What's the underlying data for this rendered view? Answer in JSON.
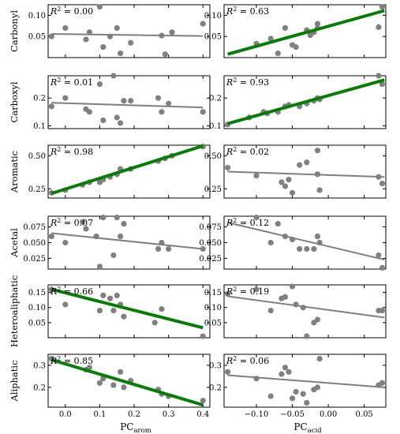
{
  "figure": {
    "xlabels": [
      {
        "base": "PC",
        "sub": "arom"
      },
      {
        "base": "PC",
        "sub": "acid"
      }
    ],
    "fit_colors": {
      "significant": "#0b7a0b",
      "not_significant": "#7f7f7f"
    },
    "point_color": "#808080"
  },
  "chart_data": [
    {
      "type": "scatter",
      "row": 0,
      "col": 0,
      "ylabel": "Carbonyl",
      "r2": "0.00",
      "xlim": [
        -0.05,
        0.42
      ],
      "ylim": [
        0.0,
        0.125
      ],
      "yticks": [
        {
          "v": 0.05,
          "label": "0.05"
        },
        {
          "v": 0.1,
          "label": "0.10"
        }
      ],
      "xticks": [],
      "points": [
        [
          -0.04,
          0.05
        ],
        [
          0.0,
          0.07
        ],
        [
          0.06,
          0.043
        ],
        [
          0.07,
          0.06
        ],
        [
          0.1,
          0.12
        ],
        [
          0.11,
          0.025
        ],
        [
          0.13,
          0.05
        ],
        [
          0.15,
          0.07
        ],
        [
          0.16,
          0.01
        ],
        [
          0.19,
          0.035
        ],
        [
          0.28,
          0.052
        ],
        [
          0.29,
          0.008
        ],
        [
          0.31,
          0.06
        ],
        [
          0.4,
          0.08
        ]
      ],
      "fit": [
        [
          -0.04,
          0.056
        ],
        [
          0.4,
          0.051
        ]
      ],
      "highlight": false
    },
    {
      "type": "scatter",
      "row": 0,
      "col": 1,
      "ylabel": "Carbonyl",
      "r2": "0.63",
      "xlim": [
        -0.145,
        0.08
      ],
      "ylim": [
        0.0,
        0.125
      ],
      "yticks": [
        {
          "v": 0.05,
          "label": "0.05"
        },
        {
          "v": 0.1,
          "label": "0.10"
        }
      ],
      "xticks": [],
      "points": [
        [
          -0.1,
          0.033
        ],
        [
          -0.08,
          0.045
        ],
        [
          -0.07,
          0.01
        ],
        [
          -0.06,
          0.07
        ],
        [
          -0.05,
          0.03
        ],
        [
          -0.045,
          0.025
        ],
        [
          -0.03,
          0.065
        ],
        [
          -0.025,
          0.053
        ],
        [
          -0.02,
          0.06
        ],
        [
          -0.015,
          0.07
        ],
        [
          -0.015,
          0.08
        ],
        [
          0.07,
          0.072
        ],
        [
          0.075,
          0.12
        ]
      ],
      "fit": [
        [
          -0.14,
          0.008
        ],
        [
          0.078,
          0.111
        ]
      ],
      "highlight": true
    },
    {
      "type": "scatter",
      "row": 1,
      "col": 0,
      "ylabel": "Carboxyl",
      "r2": "0.01",
      "xlim": [
        -0.05,
        0.42
      ],
      "ylim": [
        0.09,
        0.28
      ],
      "yticks": [
        {
          "v": 0.1,
          "label": "0.1"
        },
        {
          "v": 0.2,
          "label": "0.2"
        }
      ],
      "xticks": [],
      "points": [
        [
          -0.04,
          0.17
        ],
        [
          0.0,
          0.2
        ],
        [
          0.06,
          0.16
        ],
        [
          0.07,
          0.15
        ],
        [
          0.1,
          0.25
        ],
        [
          0.11,
          0.12
        ],
        [
          0.14,
          0.28
        ],
        [
          0.15,
          0.13
        ],
        [
          0.16,
          0.11
        ],
        [
          0.17,
          0.19
        ],
        [
          0.19,
          0.19
        ],
        [
          0.27,
          0.2
        ],
        [
          0.28,
          0.15
        ],
        [
          0.3,
          0.18
        ],
        [
          0.4,
          0.15
        ]
      ],
      "fit": [
        [
          -0.04,
          0.183
        ],
        [
          0.4,
          0.166
        ]
      ],
      "highlight": false
    },
    {
      "type": "scatter",
      "row": 1,
      "col": 1,
      "ylabel": "Carboxyl",
      "r2": "0.93",
      "xlim": [
        -0.145,
        0.08
      ],
      "ylim": [
        0.09,
        0.28
      ],
      "yticks": [
        {
          "v": 0.1,
          "label": "0.1"
        },
        {
          "v": 0.2,
          "label": "0.2"
        }
      ],
      "xticks": [],
      "points": [
        [
          -0.14,
          0.105
        ],
        [
          -0.11,
          0.13
        ],
        [
          -0.09,
          0.15
        ],
        [
          -0.085,
          0.145
        ],
        [
          -0.07,
          0.15
        ],
        [
          -0.06,
          0.17
        ],
        [
          -0.055,
          0.175
        ],
        [
          -0.04,
          0.17
        ],
        [
          -0.03,
          0.18
        ],
        [
          -0.02,
          0.19
        ],
        [
          -0.015,
          0.2
        ],
        [
          -0.012,
          0.195
        ],
        [
          0.07,
          0.28
        ],
        [
          0.075,
          0.25
        ]
      ],
      "fit": [
        [
          -0.14,
          0.108
        ],
        [
          0.078,
          0.265
        ]
      ],
      "highlight": true
    },
    {
      "type": "scatter",
      "row": 2,
      "col": 0,
      "ylabel": "Aromatic",
      "r2": "0.98",
      "xlim": [
        -0.05,
        0.42
      ],
      "ylim": [
        0.18,
        0.58
      ],
      "yticks": [
        {
          "v": 0.25,
          "label": "0.25"
        },
        {
          "v": 0.5,
          "label": "0.50"
        }
      ],
      "xticks": [],
      "points": [
        [
          -0.04,
          0.22
        ],
        [
          0.0,
          0.24
        ],
        [
          0.05,
          0.28
        ],
        [
          0.07,
          0.3
        ],
        [
          0.1,
          0.3
        ],
        [
          0.11,
          0.32
        ],
        [
          0.13,
          0.34
        ],
        [
          0.15,
          0.36
        ],
        [
          0.16,
          0.4
        ],
        [
          0.19,
          0.4
        ],
        [
          0.27,
          0.46
        ],
        [
          0.29,
          0.48
        ],
        [
          0.31,
          0.5
        ],
        [
          0.4,
          0.57
        ]
      ],
      "fit": [
        [
          -0.04,
          0.215
        ],
        [
          0.4,
          0.575
        ]
      ],
      "highlight": true
    },
    {
      "type": "scatter",
      "row": 2,
      "col": 1,
      "ylabel": "Aromatic",
      "r2": "0.02",
      "xlim": [
        -0.145,
        0.08
      ],
      "ylim": [
        0.18,
        0.58
      ],
      "yticks": [
        {
          "v": 0.25,
          "label": "0.25"
        },
        {
          "v": 0.5,
          "label": "0.50"
        }
      ],
      "xticks": [],
      "points": [
        [
          -0.14,
          0.41
        ],
        [
          -0.1,
          0.35
        ],
        [
          -0.065,
          0.3
        ],
        [
          -0.06,
          0.27
        ],
        [
          -0.055,
          0.32
        ],
        [
          -0.05,
          0.22
        ],
        [
          -0.04,
          0.43
        ],
        [
          -0.03,
          0.45
        ],
        [
          -0.015,
          0.36
        ],
        [
          -0.012,
          0.24
        ],
        [
          -0.015,
          0.54
        ],
        [
          0.07,
          0.34
        ],
        [
          0.075,
          0.29
        ]
      ],
      "fit": [
        [
          -0.14,
          0.38
        ],
        [
          0.078,
          0.34
        ]
      ],
      "highlight": false
    },
    {
      "type": "scatter",
      "row": 3,
      "col": 0,
      "ylabel": "Acetal",
      "r2": "0.07",
      "xlim": [
        -0.05,
        0.42
      ],
      "ylim": [
        0.008,
        0.092
      ],
      "yticks": [
        {
          "v": 0.025,
          "label": "0.025"
        },
        {
          "v": 0.05,
          "label": "0.050"
        },
        {
          "v": 0.075,
          "label": "0.075"
        }
      ],
      "xticks": [],
      "points": [
        [
          -0.04,
          0.06
        ],
        [
          0.0,
          0.05
        ],
        [
          0.05,
          0.083
        ],
        [
          0.06,
          0.072
        ],
        [
          0.09,
          0.06
        ],
        [
          0.1,
          0.012
        ],
        [
          0.11,
          0.09
        ],
        [
          0.14,
          0.03
        ],
        [
          0.15,
          0.09
        ],
        [
          0.16,
          0.06
        ],
        [
          0.17,
          0.08
        ],
        [
          0.27,
          0.04
        ],
        [
          0.28,
          0.05
        ],
        [
          0.3,
          0.04
        ],
        [
          0.4,
          0.04
        ]
      ],
      "fit": [
        [
          -0.04,
          0.065
        ],
        [
          0.4,
          0.04
        ]
      ],
      "highlight": false
    },
    {
      "type": "scatter",
      "row": 3,
      "col": 1,
      "ylabel": "Acetal",
      "r2": "0.12",
      "xlim": [
        -0.145,
        0.08
      ],
      "ylim": [
        0.008,
        0.092
      ],
      "yticks": [
        {
          "v": 0.025,
          "label": "0.025"
        },
        {
          "v": 0.05,
          "label": "0.050"
        },
        {
          "v": 0.075,
          "label": "0.075"
        }
      ],
      "xticks": [],
      "points": [
        [
          -0.1,
          0.09
        ],
        [
          -0.08,
          0.05
        ],
        [
          -0.07,
          0.08
        ],
        [
          -0.06,
          0.06
        ],
        [
          -0.05,
          0.055
        ],
        [
          -0.04,
          0.04
        ],
        [
          -0.03,
          0.04
        ],
        [
          -0.02,
          0.04
        ],
        [
          -0.015,
          0.06
        ],
        [
          -0.012,
          0.05
        ],
        [
          0.07,
          0.03
        ],
        [
          0.075,
          0.01
        ]
      ],
      "fit": [
        [
          -0.14,
          0.082
        ],
        [
          0.078,
          0.023
        ]
      ],
      "highlight": false
    },
    {
      "type": "scatter",
      "row": 4,
      "col": 0,
      "ylabel": "Heteroaliphatic",
      "r2": "0.66",
      "xlim": [
        -0.05,
        0.42
      ],
      "ylim": [
        0.0,
        0.175
      ],
      "yticks": [
        {
          "v": 0.05,
          "label": "0.05"
        },
        {
          "v": 0.1,
          "label": "0.10"
        },
        {
          "v": 0.15,
          "label": "0.15"
        }
      ],
      "xticks": [],
      "points": [
        [
          -0.04,
          0.16
        ],
        [
          0.0,
          0.11
        ],
        [
          0.1,
          0.09
        ],
        [
          0.11,
          0.14
        ],
        [
          0.13,
          0.13
        ],
        [
          0.14,
          0.09
        ],
        [
          0.15,
          0.14
        ],
        [
          0.16,
          0.11
        ],
        [
          0.17,
          0.07
        ],
        [
          0.26,
          0.05
        ],
        [
          0.28,
          0.095
        ],
        [
          0.4,
          0.005
        ]
      ],
      "fit": [
        [
          -0.04,
          0.16
        ],
        [
          0.4,
          0.033
        ]
      ],
      "highlight": true
    },
    {
      "type": "scatter",
      "row": 4,
      "col": 1,
      "ylabel": "Heteroaliphatic",
      "r2": "0.19",
      "xlim": [
        -0.145,
        0.08
      ],
      "ylim": [
        0.0,
        0.175
      ],
      "yticks": [
        {
          "v": 0.05,
          "label": "0.05"
        },
        {
          "v": 0.1,
          "label": "0.10"
        },
        {
          "v": 0.15,
          "label": "0.15"
        }
      ],
      "xticks": [],
      "points": [
        [
          -0.14,
          0.145
        ],
        [
          -0.1,
          0.16
        ],
        [
          -0.08,
          0.09
        ],
        [
          -0.065,
          0.13
        ],
        [
          -0.06,
          0.135
        ],
        [
          -0.05,
          0.17
        ],
        [
          -0.045,
          0.11
        ],
        [
          -0.035,
          0.1
        ],
        [
          -0.03,
          0.005
        ],
        [
          -0.02,
          0.05
        ],
        [
          -0.015,
          0.06
        ],
        [
          0.07,
          0.09
        ],
        [
          0.075,
          0.09
        ]
      ],
      "fit": [
        [
          -0.14,
          0.137
        ],
        [
          0.078,
          0.067
        ]
      ],
      "highlight": false
    },
    {
      "type": "scatter",
      "row": 5,
      "col": 0,
      "ylabel": "Aliphatic",
      "r2": "0.85",
      "xlim": [
        -0.05,
        0.42
      ],
      "ylim": [
        0.11,
        0.35
      ],
      "yticks": [
        {
          "v": 0.2,
          "label": "0.2"
        },
        {
          "v": 0.3,
          "label": "0.3"
        }
      ],
      "xticks": [
        {
          "v": 0.0,
          "label": "0.0"
        },
        {
          "v": 0.1,
          "label": "0.1"
        },
        {
          "v": 0.2,
          "label": "0.2"
        },
        {
          "v": 0.3,
          "label": "0.3"
        },
        {
          "v": 0.4,
          "label": "0.4"
        }
      ],
      "points": [
        [
          -0.04,
          0.33
        ],
        [
          0.06,
          0.28
        ],
        [
          0.07,
          0.29
        ],
        [
          0.1,
          0.22
        ],
        [
          0.11,
          0.24
        ],
        [
          0.14,
          0.21
        ],
        [
          0.16,
          0.27
        ],
        [
          0.17,
          0.2
        ],
        [
          0.19,
          0.23
        ],
        [
          0.27,
          0.19
        ],
        [
          0.28,
          0.17
        ],
        [
          0.3,
          0.16
        ],
        [
          0.4,
          0.14
        ]
      ],
      "fit": [
        [
          -0.04,
          0.325
        ],
        [
          0.4,
          0.12
        ]
      ],
      "highlight": true
    },
    {
      "type": "scatter",
      "row": 5,
      "col": 1,
      "ylabel": "Aliphatic",
      "r2": "0.06",
      "xlim": [
        -0.145,
        0.08
      ],
      "ylim": [
        0.11,
        0.35
      ],
      "yticks": [
        {
          "v": 0.2,
          "label": "0.2"
        },
        {
          "v": 0.3,
          "label": "0.3"
        }
      ],
      "xticks": [
        {
          "v": -0.1,
          "label": "−0.10"
        },
        {
          "v": -0.05,
          "label": "−0.05"
        },
        {
          "v": 0.0,
          "label": "0.00"
        },
        {
          "v": 0.05,
          "label": "0.05"
        }
      ],
      "points": [
        [
          -0.14,
          0.27
        ],
        [
          -0.1,
          0.24
        ],
        [
          -0.08,
          0.16
        ],
        [
          -0.065,
          0.26
        ],
        [
          -0.06,
          0.29
        ],
        [
          -0.055,
          0.27
        ],
        [
          -0.05,
          0.15
        ],
        [
          -0.045,
          0.18
        ],
        [
          -0.035,
          0.17
        ],
        [
          -0.03,
          0.13
        ],
        [
          -0.02,
          0.19
        ],
        [
          -0.015,
          0.2
        ],
        [
          -0.012,
          0.33
        ],
        [
          0.07,
          0.21
        ],
        [
          0.075,
          0.22
        ]
      ],
      "fit": [
        [
          -0.14,
          0.255
        ],
        [
          0.078,
          0.2
        ]
      ],
      "highlight": false
    }
  ]
}
